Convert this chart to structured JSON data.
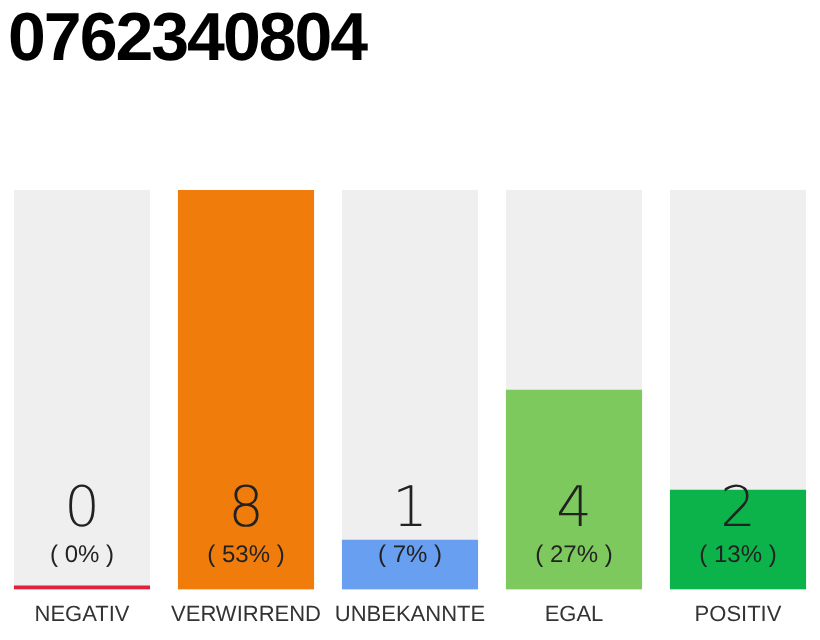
{
  "chart_data": {
    "type": "bar",
    "title": "0762340804",
    "categories": [
      "NEGATIV",
      "VERWIRREND",
      "UNBEKANNTE",
      "EGAL",
      "POSITIV"
    ],
    "values": [
      0,
      8,
      1,
      4,
      2
    ],
    "colors": [
      "#e0203c",
      "#f07c0c",
      "#689ff0",
      "#7dc95e",
      "#0cb34a"
    ],
    "ylim": [
      0,
      8
    ],
    "tick_labels": "x",
    "grid": false,
    "legend": false,
    "data_labels": true,
    "annotations": [
      "( 0% )",
      "( 53% )",
      "( 7% )",
      "( 27% )",
      "( 13% )"
    ]
  }
}
